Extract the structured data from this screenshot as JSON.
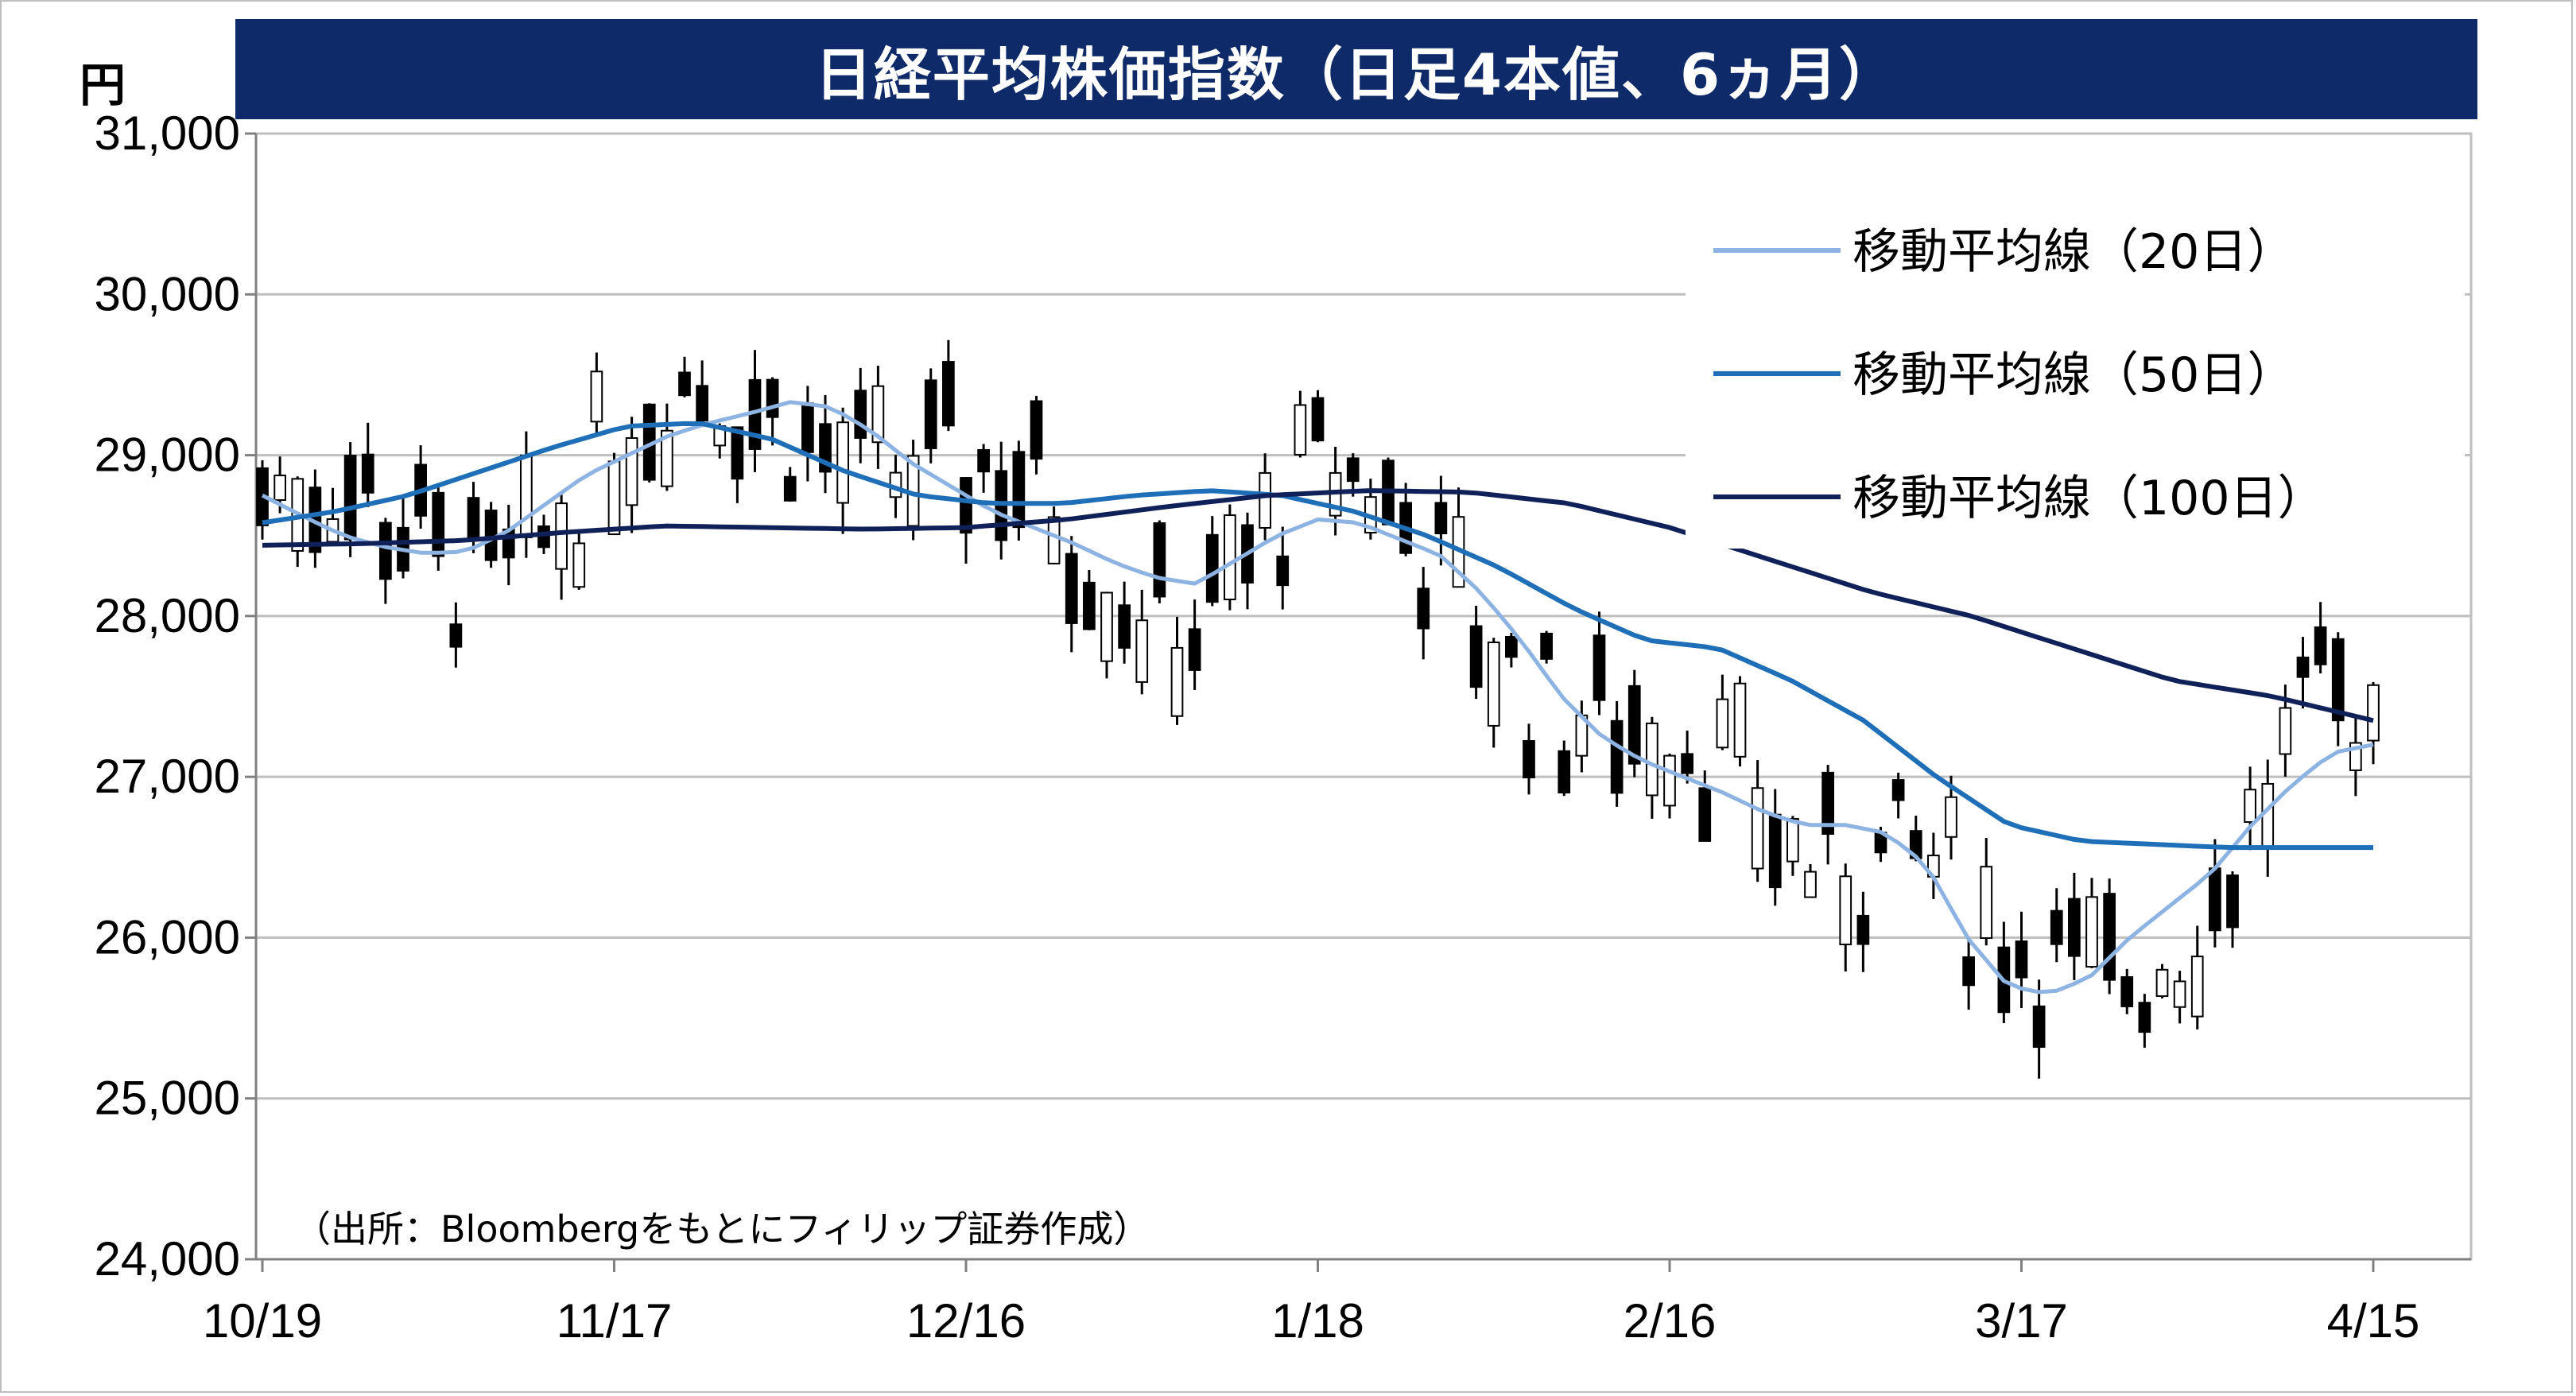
{
  "title": "日経平均株価指数（日足4本値、6ヵ月）",
  "unit_label": "円",
  "source_note": "（出所：Bloombergをもとにフィリップ証券作成）",
  "colors": {
    "title_bg": "#0f2a69",
    "ma20": "#8db3e2",
    "ma50": "#1f6fb8",
    "ma100": "#10215a",
    "grid": "#bfbfbf",
    "candle_up_fill": "#ffffff",
    "candle_down_fill": "#000000"
  },
  "chart_data": {
    "type": "candlestick",
    "title": "日経平均株価指数（日足4本値、6ヵ月）",
    "ylabel": "円",
    "ylim": [
      24000,
      31000
    ],
    "yticks": [
      24000,
      25000,
      26000,
      27000,
      28000,
      29000,
      30000,
      31000
    ],
    "ytick_labels": [
      "24,000",
      "25,000",
      "26,000",
      "27,000",
      "28,000",
      "29,000",
      "30,000",
      "31,000"
    ],
    "xtick_labels": [
      "10/19",
      "11/17",
      "12/16",
      "1/18",
      "2/16",
      "3/17",
      "4/15"
    ],
    "xtick_index": [
      0,
      20,
      40,
      60,
      80,
      100,
      120
    ],
    "grid": true,
    "legend_position": "top-right",
    "series": [
      {
        "name": "移動平均線（20日）",
        "role": "ma20",
        "values": [
          28750,
          28620,
          28500,
          28430,
          28390,
          28400,
          28520,
          28700,
          28880,
          29000,
          29120,
          29200,
          29260,
          29330,
          29300,
          29150,
          28950,
          28800,
          28650,
          28550,
          28450,
          28330,
          28240,
          28200,
          28350,
          28500,
          28600,
          28580,
          28480,
          28380,
          28150,
          27850,
          27500,
          27250,
          27100,
          27000,
          26900,
          26780,
          26700,
          26700,
          26650,
          26450,
          26000,
          25700,
          25650,
          25750,
          26000,
          26200,
          26400,
          26700,
          26950,
          27150,
          27200
        ]
      },
      {
        "name": "移動平均線（50日）",
        "role": "ma50",
        "values": [
          28580,
          28650,
          28750,
          28900,
          29050,
          29180,
          29200,
          29100,
          28900,
          28750,
          28700,
          28700,
          28750,
          28780,
          28750,
          28650,
          28500,
          28300,
          28050,
          27850,
          27800,
          27600,
          27350,
          27000,
          26700,
          26600,
          26580,
          26560,
          26560,
          26560
        ]
      },
      {
        "name": "移動平均線（100日）",
        "role": "ma100",
        "values": [
          28440,
          28450,
          28470,
          28520,
          28560,
          28550,
          28540,
          28550,
          28600,
          28680,
          28750,
          28780,
          28770,
          28700,
          28550,
          28350,
          28150,
          28000,
          27800,
          27600,
          27500,
          27350
        ]
      }
    ],
    "candles_approx_count": 120
  }
}
